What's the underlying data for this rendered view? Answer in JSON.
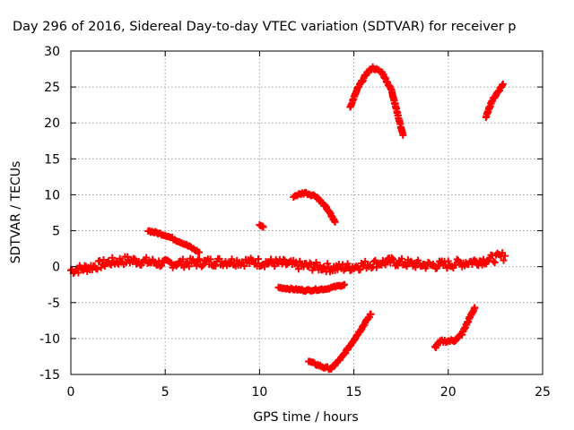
{
  "chart_data": {
    "type": "scatter",
    "title": "Day 296 of 2016, Sidereal Day-to-day VTEC variation (SDTVAR) for receiver p",
    "xlabel": "GPS time / hours",
    "ylabel": "SDTVAR / TECUs",
    "xlim": [
      0,
      25
    ],
    "ylim": [
      -15,
      30
    ],
    "xticks": [
      "0",
      "5",
      "10",
      "15",
      "20",
      "25"
    ],
    "yticks": [
      "-15",
      "-10",
      "-5",
      "0",
      "5",
      "10",
      "15",
      "20",
      "25",
      "30"
    ],
    "grid": true,
    "marker": "plus",
    "color": "#ff0000",
    "series": [
      {
        "points": [
          [
            0,
            -0.5
          ],
          [
            1,
            -0.1
          ],
          [
            2,
            0.6
          ],
          [
            3,
            0.9
          ],
          [
            4,
            0.7
          ],
          [
            5,
            0.4
          ],
          [
            6,
            0.5
          ],
          [
            7,
            0.6
          ],
          [
            8,
            0.7
          ],
          [
            9,
            0.7
          ],
          [
            10,
            0.6
          ],
          [
            11,
            0.5
          ],
          [
            12,
            0.2
          ],
          [
            13,
            0.0
          ],
          [
            14,
            -0.2
          ],
          [
            15,
            0.0
          ],
          [
            16,
            0.4
          ],
          [
            17,
            0.7
          ],
          [
            18,
            0.4
          ],
          [
            19,
            0.2
          ],
          [
            20,
            0.3
          ],
          [
            21,
            0.6
          ],
          [
            22,
            0.9
          ],
          [
            23,
            1.5
          ]
        ],
        "spread": 0.6
      },
      {
        "points": [
          [
            4.1,
            5.0
          ],
          [
            5,
            4.4
          ],
          [
            6,
            3.2
          ],
          [
            6.8,
            2.0
          ]
        ],
        "spread": 0.15
      },
      {
        "points": [
          [
            10.0,
            5.8
          ],
          [
            10.2,
            5.5
          ]
        ],
        "spread": 0.1
      },
      {
        "points": [
          [
            11.8,
            9.8
          ],
          [
            12.4,
            10.3
          ],
          [
            13,
            9.8
          ],
          [
            13.6,
            8.0
          ],
          [
            14.0,
            6.2
          ]
        ],
        "spread": 0.15
      },
      {
        "points": [
          [
            11,
            -2.9
          ],
          [
            12,
            -3.2
          ],
          [
            12.5,
            -3.3
          ],
          [
            13.5,
            -3.1
          ],
          [
            14.5,
            -2.5
          ]
        ],
        "spread": 0.12
      },
      {
        "points": [
          [
            12.6,
            -13.2
          ],
          [
            13.4,
            -14.0
          ],
          [
            13.8,
            -14.2
          ],
          [
            14.4,
            -12.5
          ],
          [
            15.3,
            -9.0
          ],
          [
            15.9,
            -6.6
          ]
        ],
        "spread": 0.15
      },
      {
        "points": [
          [
            14.8,
            22.2
          ],
          [
            15.2,
            24.8
          ],
          [
            15.7,
            27.0
          ],
          [
            16.0,
            27.7
          ],
          [
            16.5,
            27.0
          ],
          [
            17.0,
            24.5
          ],
          [
            17.6,
            18.3
          ]
        ],
        "spread": 0.15
      },
      {
        "points": [
          [
            19.3,
            -11.2
          ],
          [
            19.6,
            -10.4
          ],
          [
            20.3,
            -10.3
          ],
          [
            20.7,
            -9.5
          ],
          [
            21.4,
            -5.7
          ]
        ],
        "spread": 0.2
      },
      {
        "points": [
          [
            22.0,
            20.8
          ],
          [
            22.3,
            23.0
          ],
          [
            22.9,
            25.4
          ]
        ],
        "spread": 0.15
      }
    ]
  }
}
